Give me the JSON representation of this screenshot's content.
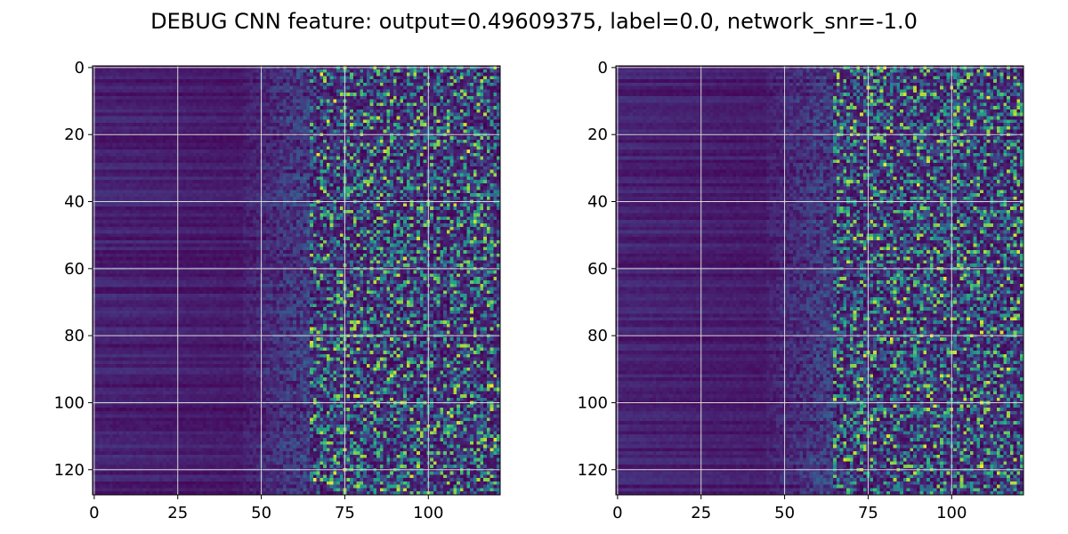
{
  "title": "DEBUG CNN feature: output=0.49609375, label=0.0, network_snr=-1.0",
  "colors": {
    "colormap": "viridis",
    "grid": "#d8d8d8",
    "axis": "#000000",
    "background": "#ffffff"
  },
  "chart_data": [
    {
      "type": "heatmap",
      "title": "",
      "xlabel": "",
      "ylabel": "",
      "rows": 128,
      "cols": 122,
      "xlim": [
        -0.5,
        121.5
      ],
      "ylim": [
        127.5,
        -0.5
      ],
      "x_ticks": [
        0,
        25,
        50,
        75,
        100
      ],
      "y_ticks": [
        0,
        20,
        40,
        60,
        80,
        100,
        120
      ],
      "x_tick_labels": [
        "0",
        "25",
        "50",
        "75",
        "100"
      ],
      "y_tick_labels": [
        "0",
        "20",
        "40",
        "60",
        "80",
        "100",
        "120"
      ],
      "grid": true,
      "colormap": "viridis",
      "seed": 1
    },
    {
      "type": "heatmap",
      "title": "",
      "xlabel": "",
      "ylabel": "",
      "rows": 128,
      "cols": 122,
      "xlim": [
        -0.5,
        121.5
      ],
      "ylim": [
        127.5,
        -0.5
      ],
      "x_ticks": [
        0,
        25,
        50,
        75,
        100
      ],
      "y_ticks": [
        0,
        20,
        40,
        60,
        80,
        100,
        120
      ],
      "x_tick_labels": [
        "0",
        "25",
        "50",
        "75",
        "100"
      ],
      "y_tick_labels": [
        "0",
        "20",
        "40",
        "60",
        "80",
        "100",
        "120"
      ],
      "grid": true,
      "colormap": "viridis",
      "seed": 7
    }
  ]
}
